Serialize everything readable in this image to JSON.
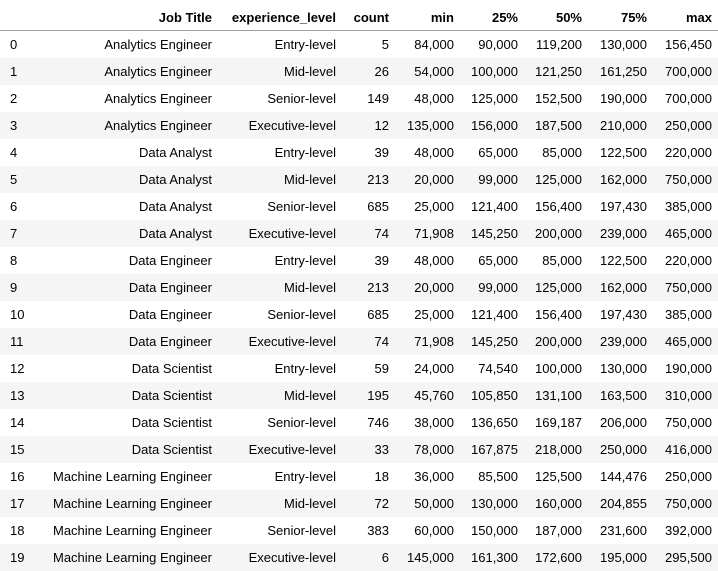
{
  "table": {
    "columns": [
      "",
      "Job Title",
      "experience_level",
      "count",
      "min",
      "25%",
      "50%",
      "75%",
      "max"
    ],
    "rows": [
      [
        "0",
        "Analytics Engineer",
        "Entry-level",
        "5",
        "84,000",
        "90,000",
        "119,200",
        "130,000",
        "156,450"
      ],
      [
        "1",
        "Analytics Engineer",
        "Mid-level",
        "26",
        "54,000",
        "100,000",
        "121,250",
        "161,250",
        "700,000"
      ],
      [
        "2",
        "Analytics Engineer",
        "Senior-level",
        "149",
        "48,000",
        "125,000",
        "152,500",
        "190,000",
        "700,000"
      ],
      [
        "3",
        "Analytics Engineer",
        "Executive-level",
        "12",
        "135,000",
        "156,000",
        "187,500",
        "210,000",
        "250,000"
      ],
      [
        "4",
        "Data Analyst",
        "Entry-level",
        "39",
        "48,000",
        "65,000",
        "85,000",
        "122,500",
        "220,000"
      ],
      [
        "5",
        "Data Analyst",
        "Mid-level",
        "213",
        "20,000",
        "99,000",
        "125,000",
        "162,000",
        "750,000"
      ],
      [
        "6",
        "Data Analyst",
        "Senior-level",
        "685",
        "25,000",
        "121,400",
        "156,400",
        "197,430",
        "385,000"
      ],
      [
        "7",
        "Data Analyst",
        "Executive-level",
        "74",
        "71,908",
        "145,250",
        "200,000",
        "239,000",
        "465,000"
      ],
      [
        "8",
        "Data Engineer",
        "Entry-level",
        "39",
        "48,000",
        "65,000",
        "85,000",
        "122,500",
        "220,000"
      ],
      [
        "9",
        "Data Engineer",
        "Mid-level",
        "213",
        "20,000",
        "99,000",
        "125,000",
        "162,000",
        "750,000"
      ],
      [
        "10",
        "Data Engineer",
        "Senior-level",
        "685",
        "25,000",
        "121,400",
        "156,400",
        "197,430",
        "385,000"
      ],
      [
        "11",
        "Data Engineer",
        "Executive-level",
        "74",
        "71,908",
        "145,250",
        "200,000",
        "239,000",
        "465,000"
      ],
      [
        "12",
        "Data Scientist",
        "Entry-level",
        "59",
        "24,000",
        "74,540",
        "100,000",
        "130,000",
        "190,000"
      ],
      [
        "13",
        "Data Scientist",
        "Mid-level",
        "195",
        "45,760",
        "105,850",
        "131,100",
        "163,500",
        "310,000"
      ],
      [
        "14",
        "Data Scientist",
        "Senior-level",
        "746",
        "38,000",
        "136,650",
        "169,187",
        "206,000",
        "750,000"
      ],
      [
        "15",
        "Data Scientist",
        "Executive-level",
        "33",
        "78,000",
        "167,875",
        "218,000",
        "250,000",
        "416,000"
      ],
      [
        "16",
        "Machine Learning Engineer",
        "Entry-level",
        "18",
        "36,000",
        "85,500",
        "125,500",
        "144,476",
        "250,000"
      ],
      [
        "17",
        "Machine Learning Engineer",
        "Mid-level",
        "72",
        "50,000",
        "130,000",
        "160,000",
        "204,855",
        "750,000"
      ],
      [
        "18",
        "Machine Learning Engineer",
        "Senior-level",
        "383",
        "60,000",
        "150,000",
        "187,000",
        "231,600",
        "392,000"
      ],
      [
        "19",
        "Machine Learning Engineer",
        "Executive-level",
        "6",
        "145,000",
        "161,300",
        "172,600",
        "195,000",
        "295,500"
      ]
    ]
  },
  "colors": {
    "stripe": "#f5f5f5",
    "header_rule": "#9e9e9e",
    "text": "#000000"
  }
}
